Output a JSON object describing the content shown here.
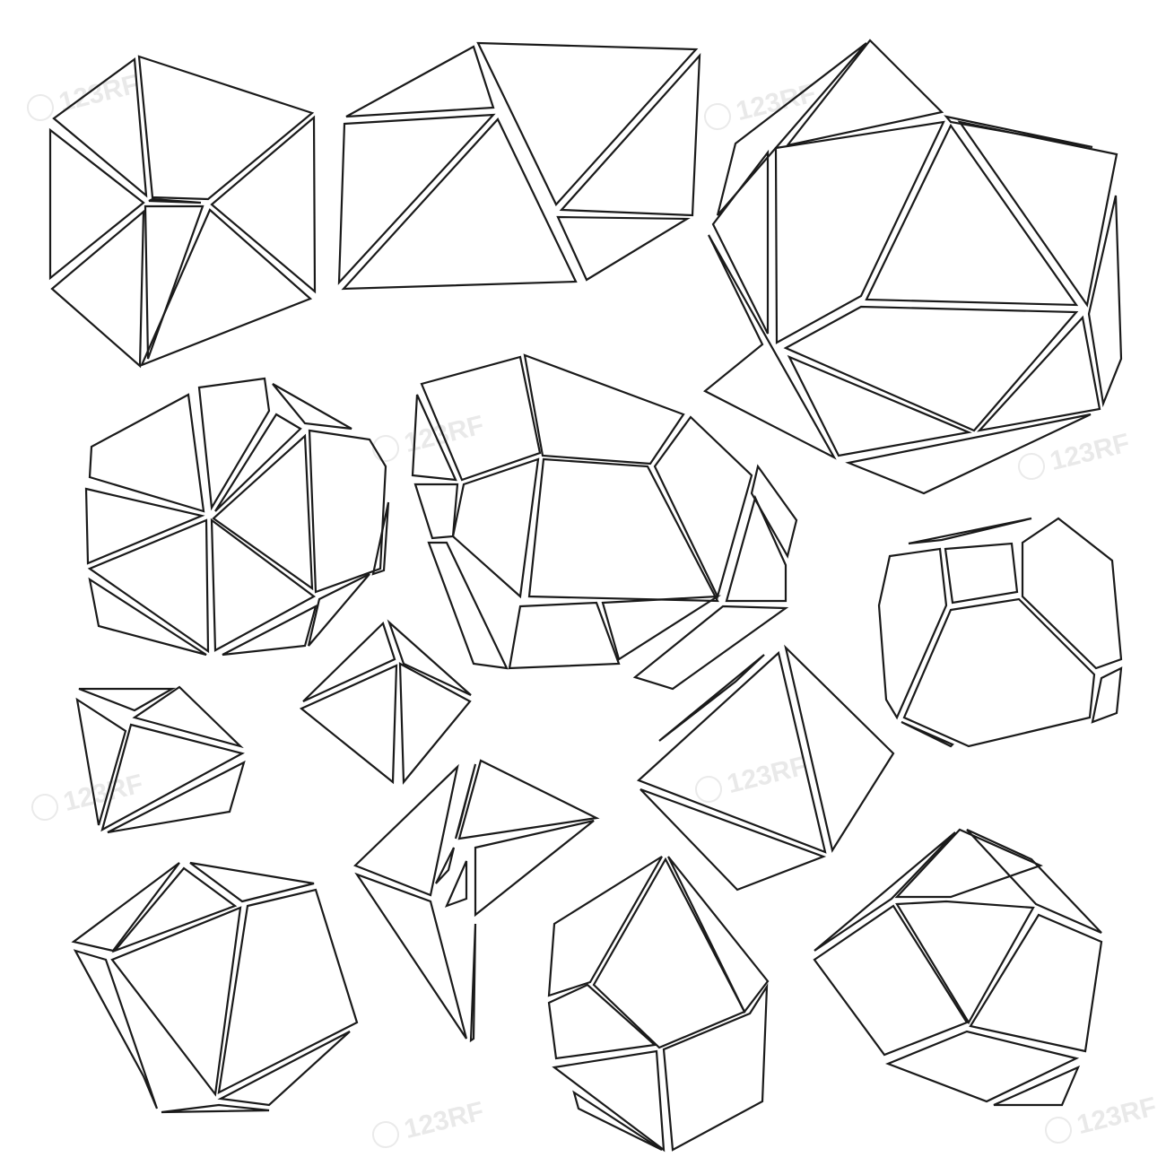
{
  "artwork": {
    "subject": "crystal-outlines",
    "line_color": "#1a1a1a",
    "background_color": "#ffffff",
    "watermark_color": "#dcdcdc"
  },
  "watermark": {
    "text": "123RF"
  }
}
